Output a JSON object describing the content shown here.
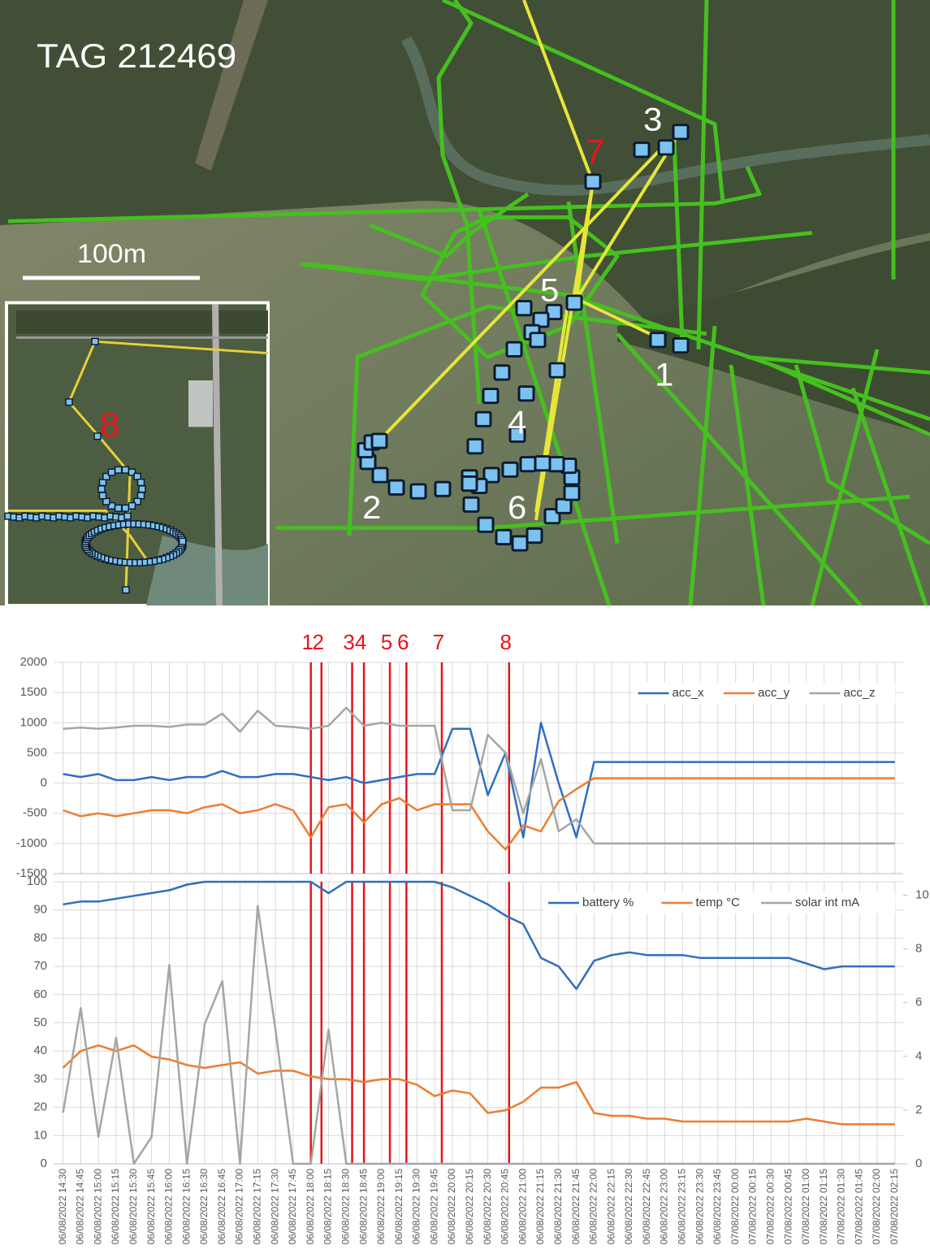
{
  "map": {
    "title": "TAG 212469",
    "scale": "100m",
    "points": [
      "1",
      "2",
      "3",
      "4",
      "5",
      "6",
      "7",
      "8"
    ]
  },
  "chart_data": [
    {
      "type": "line",
      "x": [
        "2022-08-06T14:30",
        "2022-08-06T14:45",
        "2022-08-06T15:00",
        "2022-08-06T15:15",
        "2022-08-06T15:30",
        "2022-08-06T15:45",
        "2022-08-06T16:00",
        "2022-08-06T16:15",
        "2022-08-06T16:30",
        "2022-08-06T16:45",
        "2022-08-06T17:00",
        "2022-08-06T17:15",
        "2022-08-06T17:30",
        "2022-08-06T17:45",
        "2022-08-06T18:00",
        "2022-08-06T18:15",
        "2022-08-06T18:30",
        "2022-08-06T18:45",
        "2022-08-06T19:00",
        "2022-08-06T19:15",
        "2022-08-06T19:30",
        "2022-08-06T19:45",
        "2022-08-06T20:00",
        "2022-08-06T20:15",
        "2022-08-06T20:30",
        "2022-08-06T20:45",
        "2022-08-06T21:00",
        "2022-08-06T21:15",
        "2022-08-06T21:30",
        "2022-08-06T21:45",
        "2022-08-06T22:00",
        "2022-08-06T22:15",
        "2022-08-06T22:30",
        "2022-08-06T22:45",
        "2022-08-06T23:00",
        "2022-08-06T23:15",
        "2022-08-06T23:30",
        "2022-08-06T23:45",
        "2022-08-07T00:00",
        "2022-08-07T00:15",
        "2022-08-07T00:30",
        "2022-08-07T00:45",
        "2022-08-07T01:00",
        "2022-08-07T01:15",
        "2022-08-07T01:30",
        "2022-08-07T01:45",
        "2022-08-07T02:00",
        "2022-08-07T02:15"
      ],
      "xlim": [
        "2022-08-06T14:22",
        "2022-08-07T02:22"
      ],
      "xticks": [
        "2022-08-06T14:30",
        "2022-08-06T14:45",
        "2022-08-06T15:00",
        "2022-08-06T15:15",
        "2022-08-06T15:30",
        "2022-08-06T15:45",
        "2022-08-06T16:00",
        "2022-08-06T16:15",
        "2022-08-06T16:30",
        "2022-08-06T16:45",
        "2022-08-06T17:00",
        "2022-08-06T17:15",
        "2022-08-06T17:30",
        "2022-08-06T17:45",
        "2022-08-06T18:00",
        "2022-08-06T18:15",
        "2022-08-06T18:30",
        "2022-08-06T18:45",
        "2022-08-06T19:00",
        "2022-08-06T19:15",
        "2022-08-06T19:30",
        "2022-08-06T19:45",
        "2022-08-06T20:00",
        "2022-08-06T20:15",
        "2022-08-06T20:30",
        "2022-08-06T20:45",
        "2022-08-06T21:00",
        "2022-08-06T21:15",
        "2022-08-06T21:30",
        "2022-08-06T21:45",
        "2022-08-06T22:00",
        "2022-08-06T22:15",
        "2022-08-06T22:30",
        "2022-08-06T22:45",
        "2022-08-06T23:00",
        "2022-08-06T23:15",
        "2022-08-06T23:30",
        "2022-08-06T23:45",
        "2022-08-07T00:00",
        "2022-08-07T00:15",
        "2022-08-07T00:30",
        "2022-08-07T00:45",
        "2022-08-07T01:00",
        "2022-08-07T01:15",
        "2022-08-07T01:30",
        "2022-08-07T01:45",
        "2022-08-07T02:00",
        "2022-08-07T02:15"
      ],
      "ylim": [
        -1500,
        2000
      ],
      "yticks": [
        -1500,
        -1000,
        -500,
        0,
        500,
        1000,
        1500,
        2000
      ],
      "grid": true,
      "legend": "top-right",
      "series": [
        {
          "name": "acc_x",
          "color": "#2e6fc0",
          "values": [
            150,
            100,
            150,
            50,
            50,
            100,
            50,
            100,
            100,
            200,
            100,
            100,
            150,
            150,
            100,
            50,
            100,
            0,
            50,
            100,
            150,
            150,
            900,
            900,
            -200,
            500,
            -900,
            1000,
            0,
            -900,
            350,
            350,
            350,
            350,
            350,
            350,
            350,
            350,
            350,
            350,
            350,
            350,
            350,
            350,
            350,
            350,
            350,
            350
          ]
        },
        {
          "name": "acc_y",
          "color": "#ed7d31",
          "values": [
            -450,
            -550,
            -500,
            -550,
            -500,
            -450,
            -450,
            -500,
            -400,
            -350,
            -500,
            -450,
            -350,
            -450,
            -900,
            -400,
            -350,
            -650,
            -350,
            -250,
            -450,
            -350,
            -350,
            -350,
            -800,
            -1100,
            -700,
            -800,
            -300,
            -100,
            80,
            80,
            80,
            80,
            80,
            80,
            80,
            80,
            80,
            80,
            80,
            80,
            80,
            80,
            80,
            80,
            80,
            80
          ]
        },
        {
          "name": "acc_z",
          "color": "#a5a5a5",
          "values": [
            900,
            920,
            900,
            920,
            950,
            950,
            930,
            970,
            970,
            1150,
            850,
            1200,
            950,
            930,
            900,
            950,
            1250,
            950,
            1000,
            950,
            950,
            950,
            -450,
            -450,
            800,
            500,
            -500,
            400,
            -800,
            -600,
            -1000,
            -1000,
            -1000,
            -1000,
            -1000,
            -1000,
            -1000,
            -1000,
            -1000,
            -1000,
            -1000,
            -1000,
            -1000,
            -1000,
            -1000,
            -1000,
            -1000,
            -1000
          ]
        }
      ],
      "events": [
        {
          "label": "1",
          "x": "2022-08-06T18:00"
        },
        {
          "label": "2",
          "x": "2022-08-06T18:09"
        },
        {
          "label": "3",
          "x": "2022-08-06T18:35"
        },
        {
          "label": "4",
          "x": "2022-08-06T18:45"
        },
        {
          "label": "5",
          "x": "2022-08-06T19:07"
        },
        {
          "label": "6",
          "x": "2022-08-06T19:21"
        },
        {
          "label": "7",
          "x": "2022-08-06T19:51"
        },
        {
          "label": "8",
          "x": "2022-08-06T20:48"
        }
      ]
    },
    {
      "type": "line",
      "x": [
        "2022-08-06T14:30",
        "2022-08-06T14:45",
        "2022-08-06T15:00",
        "2022-08-06T15:15",
        "2022-08-06T15:30",
        "2022-08-06T15:45",
        "2022-08-06T16:00",
        "2022-08-06T16:15",
        "2022-08-06T16:30",
        "2022-08-06T16:45",
        "2022-08-06T17:00",
        "2022-08-06T17:15",
        "2022-08-06T17:30",
        "2022-08-06T17:45",
        "2022-08-06T18:00",
        "2022-08-06T18:15",
        "2022-08-06T18:30",
        "2022-08-06T18:45",
        "2022-08-06T19:00",
        "2022-08-06T19:15",
        "2022-08-06T19:30",
        "2022-08-06T19:45",
        "2022-08-06T20:00",
        "2022-08-06T20:15",
        "2022-08-06T20:30",
        "2022-08-06T20:45",
        "2022-08-06T21:00",
        "2022-08-06T21:15",
        "2022-08-06T21:30",
        "2022-08-06T21:45",
        "2022-08-06T22:00",
        "2022-08-06T22:15",
        "2022-08-06T22:30",
        "2022-08-06T22:45",
        "2022-08-06T23:00",
        "2022-08-06T23:15",
        "2022-08-06T23:30",
        "2022-08-06T23:45",
        "2022-08-07T00:00",
        "2022-08-07T00:15",
        "2022-08-07T00:30",
        "2022-08-07T00:45",
        "2022-08-07T01:00",
        "2022-08-07T01:15",
        "2022-08-07T01:30",
        "2022-08-07T01:45",
        "2022-08-07T02:00",
        "2022-08-07T02:15"
      ],
      "xlim": [
        "2022-08-06T14:22",
        "2022-08-07T02:22"
      ],
      "xticks": [
        {
          "value": "2022-08-06T14:30",
          "label": "06/08/2022 14:30"
        },
        {
          "value": "2022-08-06T14:45",
          "label": "06/08/2022 14:45"
        },
        {
          "value": "2022-08-06T15:00",
          "label": "06/08/2022 15:00"
        },
        {
          "value": "2022-08-06T15:15",
          "label": "06/08/2022 15:15"
        },
        {
          "value": "2022-08-06T15:30",
          "label": "06/08/2022 15:30"
        },
        {
          "value": "2022-08-06T15:45",
          "label": "06/08/2022 15:45"
        },
        {
          "value": "2022-08-06T16:00",
          "label": "06/08/2022 16:00"
        },
        {
          "value": "2022-08-06T16:15",
          "label": "06/08/2022 16:15"
        },
        {
          "value": "2022-08-06T16:30",
          "label": "06/08/2022 16:30"
        },
        {
          "value": "2022-08-06T16:45",
          "label": "06/08/2022 16:45"
        },
        {
          "value": "2022-08-06T17:00",
          "label": "06/08/2022 17:00"
        },
        {
          "value": "2022-08-06T17:15",
          "label": "06/08/2022 17:15"
        },
        {
          "value": "2022-08-06T17:30",
          "label": "06/08/2022 17:30"
        },
        {
          "value": "2022-08-06T17:45",
          "label": "06/08/2022 17:45"
        },
        {
          "value": "2022-08-06T18:00",
          "label": "06/08/2022 18:00"
        },
        {
          "value": "2022-08-06T18:15",
          "label": "06/08/2022 18:15"
        },
        {
          "value": "2022-08-06T18:30",
          "label": "06/08/2022 18:30"
        },
        {
          "value": "2022-08-06T18:45",
          "label": "06/08/2022 18:45"
        },
        {
          "value": "2022-08-06T19:00",
          "label": "06/08/2022 19:00"
        },
        {
          "value": "2022-08-06T19:15",
          "label": "06/08/2022 19:15"
        },
        {
          "value": "2022-08-06T19:30",
          "label": "06/08/2022 19:30"
        },
        {
          "value": "2022-08-06T19:45",
          "label": "06/08/2022 19:45"
        },
        {
          "value": "2022-08-06T20:00",
          "label": "06/08/2022 20:00"
        },
        {
          "value": "2022-08-06T20:15",
          "label": "06/08/2022 20:15"
        },
        {
          "value": "2022-08-06T20:30",
          "label": "06/08/2022 20:30"
        },
        {
          "value": "2022-08-06T20:45",
          "label": "06/08/2022 20:45"
        },
        {
          "value": "2022-08-06T21:00",
          "label": "06/08/2022 21:00"
        },
        {
          "value": "2022-08-06T21:15",
          "label": "06/08/2022 21:15"
        },
        {
          "value": "2022-08-06T21:30",
          "label": "06/08/2022 21:30"
        },
        {
          "value": "2022-08-06T21:45",
          "label": "06/08/2022 21:45"
        },
        {
          "value": "2022-08-06T22:00",
          "label": "06/08/2022 22:00"
        },
        {
          "value": "2022-08-06T22:15",
          "label": "06/08/2022 22:15"
        },
        {
          "value": "2022-08-06T22:30",
          "label": "06/08/2022 22:30"
        },
        {
          "value": "2022-08-06T22:45",
          "label": "06/08/2022 22:45"
        },
        {
          "value": "2022-08-06T23:00",
          "label": "06/08/2022 23:00"
        },
        {
          "value": "2022-08-06T23:15",
          "label": "06/08/2022 23:15"
        },
        {
          "value": "2022-08-06T23:30",
          "label": "06/08/2022 23:30"
        },
        {
          "value": "2022-08-06T23:45",
          "label": "06/08/2022 23:45"
        },
        {
          "value": "2022-08-07T00:00",
          "label": "07/08/2022 00:00"
        },
        {
          "value": "2022-08-07T00:15",
          "label": "07/08/2022 00:15"
        },
        {
          "value": "2022-08-07T00:30",
          "label": "07/08/2022 00:30"
        },
        {
          "value": "2022-08-07T00:45",
          "label": "07/08/2022 00:45"
        },
        {
          "value": "2022-08-07T01:00",
          "label": "07/08/2022 01:00"
        },
        {
          "value": "2022-08-07T01:15",
          "label": "07/08/2022 01:15"
        },
        {
          "value": "2022-08-07T01:30",
          "label": "07/08/2022 01:30"
        },
        {
          "value": "2022-08-07T01:45",
          "label": "07/08/2022 01:45"
        },
        {
          "value": "2022-08-07T02:00",
          "label": "07/08/2022 02:00"
        },
        {
          "value": "2022-08-07T02:15",
          "label": "07/08/2022 02:15"
        }
      ],
      "ylim": [
        0,
        100
      ],
      "yticks": [
        0,
        10,
        20,
        30,
        40,
        50,
        60,
        70,
        80,
        90,
        100
      ],
      "y2lim": [
        0,
        10.5
      ],
      "y2ticks": [
        0,
        2,
        4,
        6,
        8,
        10
      ],
      "grid": true,
      "legend": "top-right",
      "series": [
        {
          "name": "battery %",
          "color": "#2e6fc0",
          "values": [
            92,
            93,
            93,
            94,
            95,
            96,
            97,
            99,
            100,
            100,
            100,
            100,
            100,
            100,
            100,
            96,
            100,
            100,
            100,
            100,
            100,
            100,
            98,
            95,
            92,
            88,
            85,
            73,
            70,
            62,
            72,
            74,
            75,
            74,
            74,
            74,
            73,
            73,
            73,
            73,
            73,
            73,
            71,
            69,
            70,
            70,
            70,
            70
          ]
        },
        {
          "name": "temp °C",
          "color": "#ed7d31",
          "values": [
            34,
            40,
            42,
            40,
            42,
            38,
            37,
            35,
            34,
            35,
            36,
            32,
            33,
            33,
            31,
            30,
            30,
            29,
            30,
            30,
            28,
            24,
            26,
            25,
            18,
            19,
            22,
            27,
            27,
            29,
            18,
            17,
            17,
            16,
            16,
            15,
            15,
            15,
            15,
            15,
            15,
            15,
            16,
            15,
            14,
            14,
            14,
            14
          ]
        },
        {
          "name": "solar int mA",
          "color": "#a5a5a5",
          "axis": "y2",
          "values": [
            1.9,
            5.8,
            1.0,
            4.7,
            0,
            1.0,
            7.4,
            0,
            5.2,
            6.8,
            0,
            9.6,
            5.0,
            0,
            0,
            5.0,
            0,
            0,
            0,
            0,
            0,
            0,
            0,
            0,
            0,
            0,
            0,
            0,
            0,
            0,
            0,
            0,
            0,
            0,
            0,
            0,
            0,
            0,
            0,
            0,
            0,
            0,
            0,
            0,
            0,
            0,
            0,
            0
          ]
        }
      ]
    }
  ]
}
